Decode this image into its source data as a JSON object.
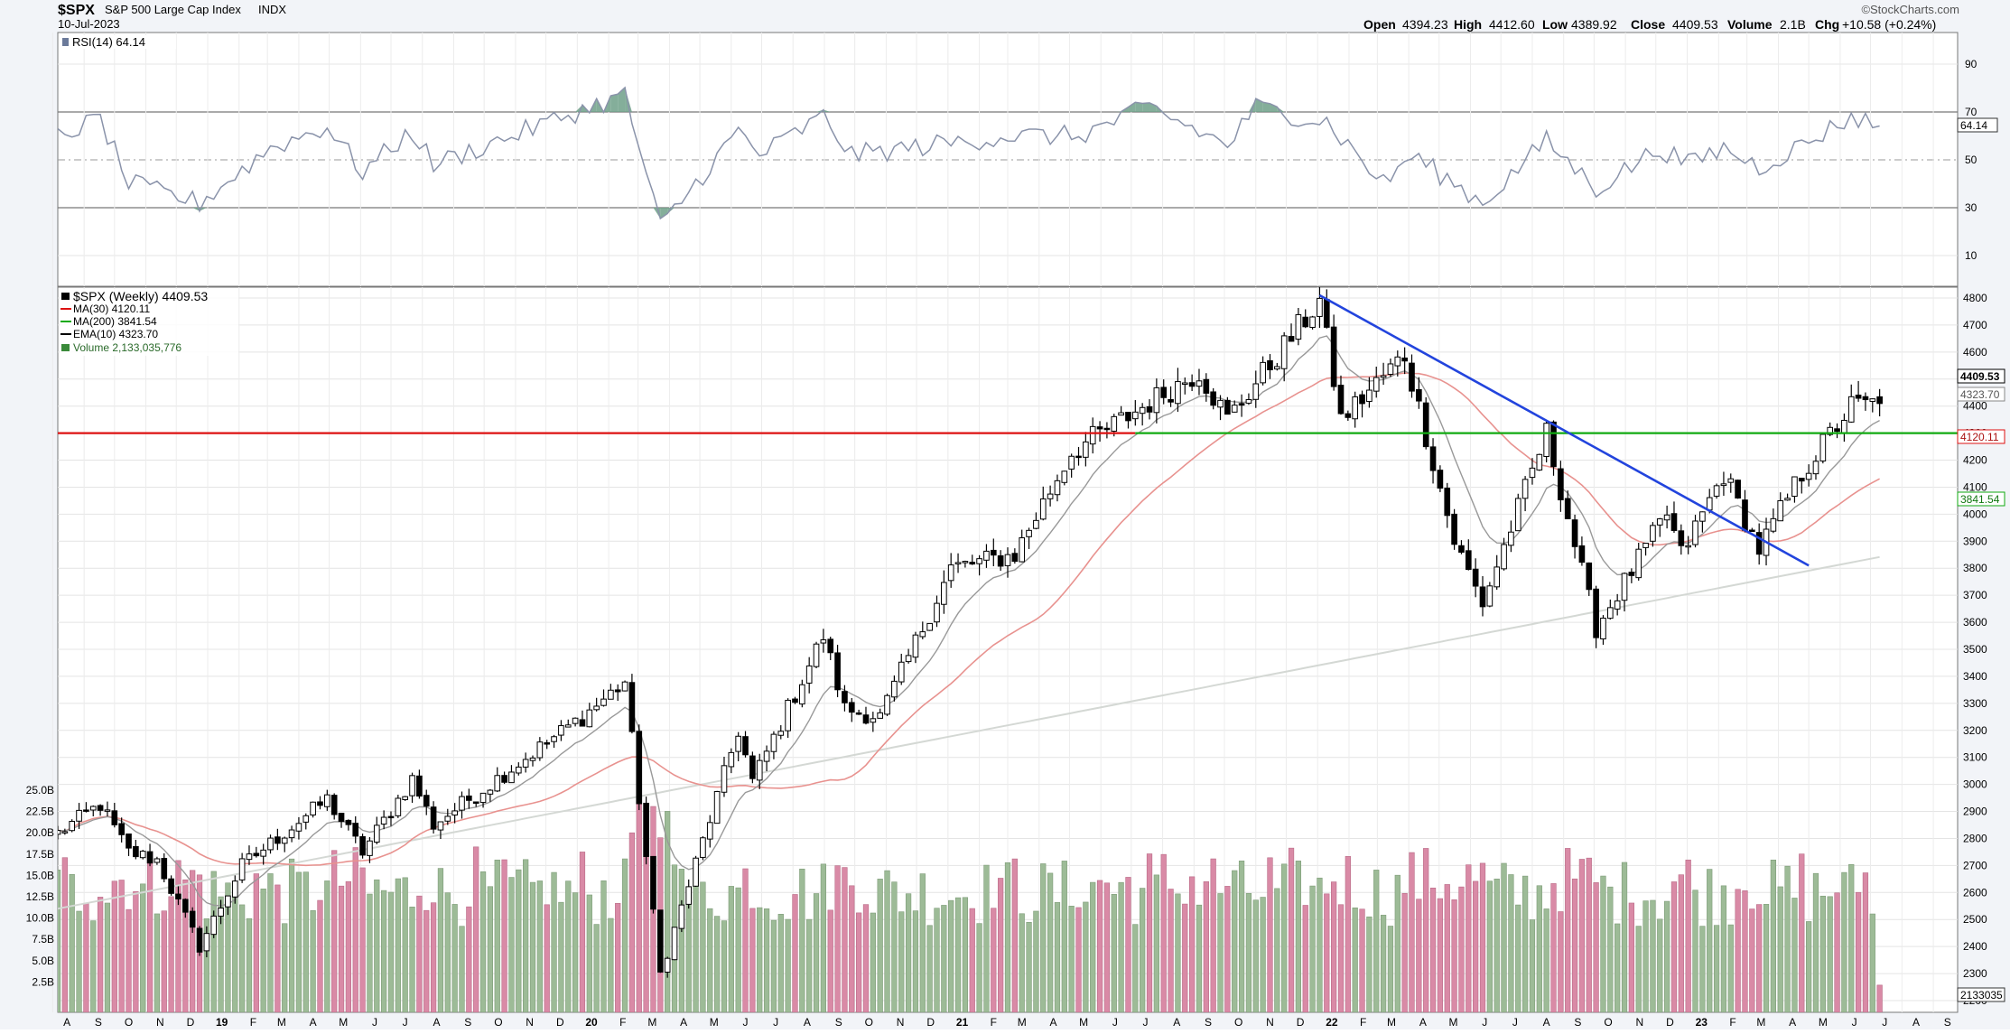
{
  "header": {
    "symbol": "$SPX",
    "name": "S&P 500 Large Cap Index",
    "exchange": "INDX",
    "date": "10-Jul-2023",
    "copyright": "©StockCharts.com",
    "open_label": "Open",
    "open": "4394.23",
    "high_label": "High",
    "high": "4412.60",
    "low_label": "Low",
    "low": "4389.92",
    "close_label": "Close",
    "close": "4409.53",
    "volume_label": "Volume",
    "volume": "2.1B",
    "chg_label": "Chg",
    "chg": "+10.58 (+0.24%)"
  },
  "rsi_panel": {
    "label": "RSI(14) 64.14",
    "value_tag": "64.14",
    "ticks": [
      "90",
      "70",
      "50",
      "30",
      "10"
    ]
  },
  "price_panel": {
    "legend": {
      "price": "$SPX (Weekly) 4409.53",
      "ma30": "MA(30) 4120.11",
      "ma200": "MA(200) 3841.54",
      "ema10": "EMA(10) 4323.70",
      "volume": "Volume 2,133,035,776"
    },
    "tags": {
      "close": "4409.53",
      "ema10": "4323.70",
      "ma30": "4120.11",
      "ma200": "3841.54",
      "volume": "2133035"
    },
    "price_ticks": [
      "4800",
      "4700",
      "4600",
      "4500",
      "4400",
      "4300",
      "4200",
      "4100",
      "4000",
      "3900",
      "3800",
      "3700",
      "3600",
      "3500",
      "3400",
      "3300",
      "3200",
      "3100",
      "3000",
      "2900",
      "2800",
      "2700",
      "2600",
      "2500",
      "2400",
      "2300",
      "2200"
    ],
    "volume_ticks": [
      "25.0B",
      "22.5B",
      "20.0B",
      "17.5B",
      "15.0B",
      "12.5B",
      "10.0B",
      "7.5B",
      "5.0B",
      "2.5B"
    ]
  },
  "x_axis_labels": [
    "A",
    "S",
    "O",
    "N",
    "D",
    "19",
    "F",
    "M",
    "A",
    "M",
    "J",
    "J",
    "A",
    "S",
    "O",
    "N",
    "D",
    "20",
    "F",
    "M",
    "A",
    "M",
    "J",
    "J",
    "A",
    "S",
    "O",
    "N",
    "D",
    "21",
    "F",
    "M",
    "A",
    "M",
    "J",
    "J",
    "A",
    "S",
    "O",
    "N",
    "D",
    "22",
    "F",
    "M",
    "A",
    "M",
    "J",
    "J",
    "A",
    "S",
    "O",
    "N",
    "D",
    "23",
    "F",
    "M",
    "A",
    "M",
    "J",
    "J",
    "A",
    "S"
  ],
  "colors": {
    "up": "#ffffff",
    "down": "#000000",
    "rsi_line": "#8a93aa",
    "rsi_fill": "#6fa088",
    "ma30": "#e8928f",
    "ma200": "#d4d8d4",
    "ema10": "#999999",
    "support": "#dd1111",
    "support_green": "#11aa11",
    "trendline": "#2244dd",
    "vol_up": "#9dbb97",
    "vol_down": "#d98aa6"
  },
  "chart_data": {
    "type": "candlestick",
    "title": "$SPX S&P 500 Large Cap Index INDX",
    "period": "Weekly",
    "x_range": [
      "2018-08",
      "2023-09"
    ],
    "ylim": [
      2200,
      4800
    ],
    "rsi_ylim": [
      0,
      100
    ],
    "volume_ylim": [
      0,
      27.5
    ],
    "volume_unit": "B",
    "price_anchors": [
      [
        "2018-08-06",
        2820
      ],
      [
        "2018-09-17",
        2925
      ],
      [
        "2018-10-15",
        2750
      ],
      [
        "2018-11-12",
        2720
      ],
      [
        "2018-12-24",
        2400
      ],
      [
        "2019-02-04",
        2700
      ],
      [
        "2019-04-29",
        2945
      ],
      [
        "2019-06-03",
        2750
      ],
      [
        "2019-07-22",
        3020
      ],
      [
        "2019-08-12",
        2850
      ],
      [
        "2019-10-28",
        3060
      ],
      [
        "2020-01-06",
        3250
      ],
      [
        "2020-02-17",
        3380
      ],
      [
        "2020-03-23",
        2300
      ],
      [
        "2020-06-08",
        3200
      ],
      [
        "2020-06-22",
        3010
      ],
      [
        "2020-08-31",
        3550
      ],
      [
        "2020-09-21",
        3280
      ],
      [
        "2020-10-26",
        3250
      ],
      [
        "2021-01-04",
        3800
      ],
      [
        "2021-03-08",
        3850
      ],
      [
        "2021-05-03",
        4230
      ],
      [
        "2021-09-06",
        4530
      ],
      [
        "2021-10-04",
        4350
      ],
      [
        "2022-01-03",
        4790
      ],
      [
        "2022-01-24",
        4350
      ],
      [
        "2022-03-28",
        4590
      ],
      [
        "2022-05-16",
        3900
      ],
      [
        "2022-06-13",
        3670
      ],
      [
        "2022-08-15",
        4300
      ],
      [
        "2022-10-03",
        3580
      ],
      [
        "2022-12-12",
        4000
      ],
      [
        "2022-12-26",
        3850
      ],
      [
        "2023-02-06",
        4150
      ],
      [
        "2023-03-13",
        3870
      ],
      [
        "2023-04-24",
        4150
      ],
      [
        "2023-06-12",
        4400
      ],
      [
        "2023-07-10",
        4409.53
      ]
    ],
    "rsi_anchors": [
      [
        "2018-08-06",
        60
      ],
      [
        "2018-09-17",
        67
      ],
      [
        "2018-10-15",
        40
      ],
      [
        "2018-12-24",
        32
      ],
      [
        "2019-03-04",
        55
      ],
      [
        "2019-04-29",
        64
      ],
      [
        "2019-06-03",
        45
      ],
      [
        "2019-07-22",
        62
      ],
      [
        "2019-08-12",
        48
      ],
      [
        "2020-01-13",
        72
      ],
      [
        "2020-02-17",
        77
      ],
      [
        "2020-03-23",
        22
      ],
      [
        "2020-06-08",
        62
      ],
      [
        "2020-06-29",
        52
      ],
      [
        "2020-08-31",
        68
      ],
      [
        "2020-09-28",
        52
      ],
      [
        "2021-03-01",
        60
      ],
      [
        "2021-05-10",
        60
      ],
      [
        "2021-07-19",
        72
      ],
      [
        "2021-10-04",
        56
      ],
      [
        "2021-11-01",
        72
      ],
      [
        "2022-01-10",
        66
      ],
      [
        "2022-03-07",
        40
      ],
      [
        "2022-04-04",
        52
      ],
      [
        "2022-06-13",
        32
      ],
      [
        "2022-08-15",
        58
      ],
      [
        "2022-10-03",
        38
      ],
      [
        "2022-12-05",
        55
      ],
      [
        "2023-01-02",
        48
      ],
      [
        "2023-02-06",
        55
      ],
      [
        "2023-03-13",
        47
      ],
      [
        "2023-04-24",
        56
      ],
      [
        "2023-06-12",
        68
      ],
      [
        "2023-07-10",
        64.14
      ]
    ],
    "overlays": {
      "MA(30)": 4120.11,
      "MA(200)": 3841.54,
      "EMA(10)": 4323.7,
      "horizontal_line": 4300,
      "trendline": {
        "from": [
          "2022-01-03",
          4810
        ],
        "to": [
          "2023-05-01",
          3810
        ]
      }
    },
    "last_volume": 2133035776
  }
}
